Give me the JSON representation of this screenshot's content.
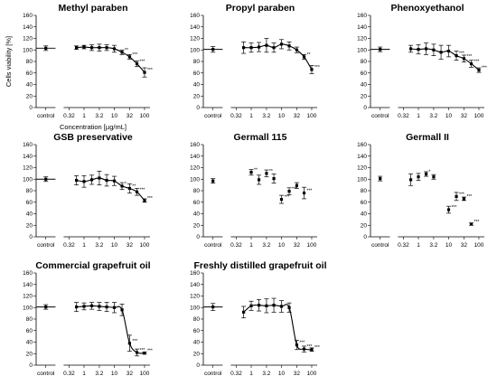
{
  "chart_data": {
    "type": "scatter",
    "shared": {
      "ylabel": "Cells viability [%]",
      "xlabel": "Concentration [µg/mL]",
      "x_categories": [
        "control",
        "0.32",
        "1",
        "3.2",
        "10",
        "32",
        "100"
      ],
      "x_log_values": [
        0.32,
        1,
        3.2,
        10,
        32,
        100
      ],
      "ylim": [
        0,
        160
      ],
      "yticks": [
        0,
        20,
        40,
        60,
        80,
        100,
        120,
        140,
        160
      ],
      "grid": false
    },
    "panels": [
      {
        "title": "Methyl paraben",
        "control": {
          "y": 103,
          "err": 4
        },
        "points": [
          {
            "x": 0.56,
            "y": 104,
            "err": 3,
            "sig": ""
          },
          {
            "x": 1,
            "y": 105,
            "err": 3,
            "sig": ""
          },
          {
            "x": 1.8,
            "y": 104,
            "err": 5,
            "sig": ""
          },
          {
            "x": 3.2,
            "y": 104,
            "err": 6,
            "sig": ""
          },
          {
            "x": 5.6,
            "y": 104,
            "err": 5,
            "sig": ""
          },
          {
            "x": 10,
            "y": 102,
            "err": 6,
            "sig": ""
          },
          {
            "x": 18,
            "y": 96,
            "err": 4,
            "sig": "**"
          },
          {
            "x": 32,
            "y": 88,
            "err": 4,
            "sig": "***"
          },
          {
            "x": 56,
            "y": 76,
            "err": 5,
            "sig": "***"
          },
          {
            "x": 100,
            "y": 61,
            "err": 8,
            "sig": "***"
          }
        ],
        "fit": true
      },
      {
        "title": "Propyl paraben",
        "control": {
          "y": 101,
          "err": 5
        },
        "points": [
          {
            "x": 0.56,
            "y": 104,
            "err": 10,
            "sig": ""
          },
          {
            "x": 1,
            "y": 104,
            "err": 8,
            "sig": ""
          },
          {
            "x": 1.8,
            "y": 105,
            "err": 8,
            "sig": ""
          },
          {
            "x": 3.2,
            "y": 108,
            "err": 12,
            "sig": ""
          },
          {
            "x": 5.6,
            "y": 104,
            "err": 8,
            "sig": ""
          },
          {
            "x": 10,
            "y": 110,
            "err": 8,
            "sig": ""
          },
          {
            "x": 18,
            "y": 107,
            "err": 7,
            "sig": ""
          },
          {
            "x": 32,
            "y": 100,
            "err": 5,
            "sig": ""
          },
          {
            "x": 56,
            "y": 88,
            "err": 4,
            "sig": "**"
          },
          {
            "x": 100,
            "y": 66,
            "err": 7,
            "sig": "***"
          }
        ],
        "fit": true
      },
      {
        "title": "Phenoxyethanol",
        "control": {
          "y": 101,
          "err": 4
        },
        "points": [
          {
            "x": 0.56,
            "y": 102,
            "err": 6,
            "sig": ""
          },
          {
            "x": 1,
            "y": 101,
            "err": 8,
            "sig": ""
          },
          {
            "x": 1.8,
            "y": 102,
            "err": 10,
            "sig": ""
          },
          {
            "x": 3.2,
            "y": 100,
            "err": 10,
            "sig": ""
          },
          {
            "x": 5.6,
            "y": 96,
            "err": 12,
            "sig": ""
          },
          {
            "x": 10,
            "y": 98,
            "err": 10,
            "sig": ""
          },
          {
            "x": 18,
            "y": 90,
            "err": 8,
            "sig": "***"
          },
          {
            "x": 32,
            "y": 85,
            "err": 6,
            "sig": "***"
          },
          {
            "x": 56,
            "y": 76,
            "err": 6,
            "sig": "***"
          },
          {
            "x": 100,
            "y": 65,
            "err": 4,
            "sig": "***"
          }
        ],
        "fit": true
      },
      {
        "title": "GSB preservative",
        "control": {
          "y": 100,
          "err": 4
        },
        "points": [
          {
            "x": 0.56,
            "y": 98,
            "err": 8,
            "sig": ""
          },
          {
            "x": 1,
            "y": 96,
            "err": 10,
            "sig": ""
          },
          {
            "x": 1.8,
            "y": 99,
            "err": 8,
            "sig": ""
          },
          {
            "x": 3.2,
            "y": 102,
            "err": 12,
            "sig": ""
          },
          {
            "x": 5.6,
            "y": 98,
            "err": 10,
            "sig": ""
          },
          {
            "x": 10,
            "y": 97,
            "err": 8,
            "sig": ""
          },
          {
            "x": 18,
            "y": 88,
            "err": 6,
            "sig": "*"
          },
          {
            "x": 32,
            "y": 84,
            "err": 8,
            "sig": "**"
          },
          {
            "x": 56,
            "y": 78,
            "err": 6,
            "sig": "***"
          },
          {
            "x": 100,
            "y": 63,
            "err": 3,
            "sig": "***"
          }
        ],
        "fit": true
      },
      {
        "title": "Germall 115",
        "control": {
          "y": 97,
          "err": 4
        },
        "points": [
          {
            "x": 1,
            "y": 112,
            "err": 5,
            "sig": "**"
          },
          {
            "x": 1.8,
            "y": 99,
            "err": 8,
            "sig": ""
          },
          {
            "x": 3.2,
            "y": 110,
            "err": 6,
            "sig": "**"
          },
          {
            "x": 5.6,
            "y": 101,
            "err": 8,
            "sig": ""
          },
          {
            "x": 10,
            "y": 65,
            "err": 7,
            "sig": "***"
          },
          {
            "x": 18,
            "y": 79,
            "err": 6,
            "sig": "***"
          },
          {
            "x": 32,
            "y": 89,
            "err": 5,
            "sig": ""
          },
          {
            "x": 56,
            "y": 76,
            "err": 10,
            "sig": "***"
          }
        ],
        "fit": false
      },
      {
        "title": "Germall II",
        "control": {
          "y": 101,
          "err": 4
        },
        "points": [
          {
            "x": 0.56,
            "y": 99,
            "err": 10,
            "sig": ""
          },
          {
            "x": 1,
            "y": 104,
            "err": 6,
            "sig": ""
          },
          {
            "x": 1.8,
            "y": 109,
            "err": 4,
            "sig": "*"
          },
          {
            "x": 3.2,
            "y": 104,
            "err": 4,
            "sig": ""
          },
          {
            "x": 10,
            "y": 47,
            "err": 6,
            "sig": "***"
          },
          {
            "x": 18,
            "y": 70,
            "err": 7,
            "sig": "***"
          },
          {
            "x": 32,
            "y": 66,
            "err": 3,
            "sig": "***"
          },
          {
            "x": 56,
            "y": 22,
            "err": 2,
            "sig": "***"
          }
        ],
        "fit": false
      },
      {
        "title": "Commercial grapefruit oil",
        "control": {
          "y": 101,
          "err": 4
        },
        "points": [
          {
            "x": 0.56,
            "y": 101,
            "err": 8,
            "sig": ""
          },
          {
            "x": 1,
            "y": 102,
            "err": 6,
            "sig": ""
          },
          {
            "x": 1.8,
            "y": 103,
            "err": 6,
            "sig": ""
          },
          {
            "x": 3.2,
            "y": 102,
            "err": 7,
            "sig": ""
          },
          {
            "x": 5.6,
            "y": 101,
            "err": 8,
            "sig": ""
          },
          {
            "x": 10,
            "y": 100,
            "err": 9,
            "sig": ""
          },
          {
            "x": 18,
            "y": 96,
            "err": 10,
            "sig": ""
          },
          {
            "x": 32,
            "y": 38,
            "err": 14,
            "sig": "***"
          },
          {
            "x": 56,
            "y": 22,
            "err": 6,
            "sig": "***"
          },
          {
            "x": 100,
            "y": 21,
            "err": 2,
            "sig": "***"
          }
        ],
        "fit": true
      },
      {
        "title": "Freshly distilled grapefruit oil",
        "control": {
          "y": 101,
          "err": 6
        },
        "points": [
          {
            "x": 0.56,
            "y": 92,
            "err": 10,
            "sig": ""
          },
          {
            "x": 1,
            "y": 103,
            "err": 8,
            "sig": ""
          },
          {
            "x": 1.8,
            "y": 104,
            "err": 10,
            "sig": ""
          },
          {
            "x": 3.2,
            "y": 103,
            "err": 12,
            "sig": ""
          },
          {
            "x": 5.6,
            "y": 104,
            "err": 12,
            "sig": ""
          },
          {
            "x": 10,
            "y": 102,
            "err": 10,
            "sig": ""
          },
          {
            "x": 18,
            "y": 100,
            "err": 8,
            "sig": ""
          },
          {
            "x": 32,
            "y": 35,
            "err": 8,
            "sig": "***"
          },
          {
            "x": 56,
            "y": 28,
            "err": 5,
            "sig": "***"
          },
          {
            "x": 100,
            "y": 27,
            "err": 3,
            "sig": "***"
          }
        ],
        "fit": true
      }
    ]
  }
}
